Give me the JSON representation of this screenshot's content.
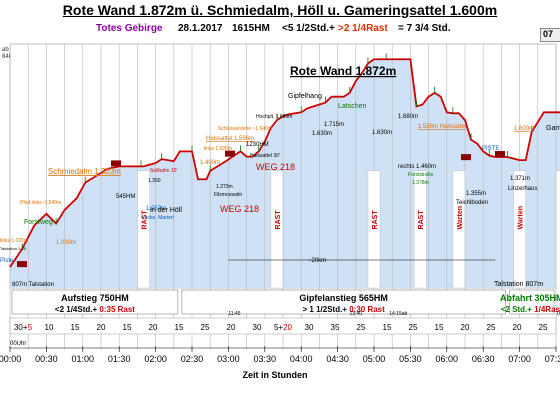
{
  "header": {
    "title": "Rote Wand 1.872m ü. Schmiedalm, Höll u. Gameringsattel 1.600m",
    "region": "Totes Gebirge",
    "date": "28.1.2017",
    "hm": "1615HM",
    "duration_prefix": "<5 1/2Std.+",
    "duration_rest": ">2 1/4Rast",
    "duration_total": "= 7 3/4 Std.",
    "corner": "07"
  },
  "left_note": [
    "ab Haid:",
    "84km; 1 Std."
  ],
  "colors": {
    "profile": "#cc0000",
    "fill": "#cfe1f5",
    "grid": "#b8b8b8",
    "rast": "#cc0000",
    "green": "#007a00",
    "orange": "#e07000",
    "blue": "#0060c0",
    "purple": "#8a00a0"
  },
  "chart_data": {
    "type": "area",
    "xlabel": "Zeit in Stunden",
    "x_ticks": [
      "00:00",
      "00:30",
      "01:00",
      "01:30",
      "02:00",
      "02:30",
      "03:00",
      "03:30",
      "04:00",
      "04:30",
      "05:00",
      "05:30",
      "06:00",
      "06:30",
      "07:00",
      "07:30"
    ],
    "x_unit": "minutes",
    "x": [
      0,
      10,
      20,
      30,
      38,
      45,
      55,
      62,
      70,
      80,
      90,
      95,
      97,
      108,
      110,
      120,
      125,
      135,
      140,
      150,
      155,
      162,
      165,
      178,
      185,
      190,
      195,
      200,
      205,
      210,
      215,
      220,
      225,
      230,
      240,
      245,
      255,
      260,
      265,
      275,
      280,
      285,
      290,
      295,
      300,
      305,
      310,
      315,
      330,
      335,
      340,
      345,
      350,
      355,
      360,
      365,
      370,
      375,
      380,
      385,
      390,
      395,
      400,
      403,
      410,
      420,
      425,
      430,
      440,
      450,
      460,
      465,
      470
    ],
    "y": [
      807,
      900,
      1020,
      1080,
      1030,
      1100,
      1160,
      1240,
      1270,
      1310,
      1323,
      1323,
      1323,
      1323,
      1323,
      1340,
      1360,
      1350,
      1400,
      1400,
      1257,
      1257,
      1300,
      1350,
      1380,
      1400,
      1373,
      1373,
      1400,
      1450,
      1520,
      1560,
      1580,
      1590,
      1600,
      1620,
      1640,
      1650,
      1680,
      1680,
      1700,
      1760,
      1800,
      1850,
      1872,
      1872,
      1872,
      1872,
      1872,
      1630,
      1640,
      1680,
      1700,
      1680,
      1600,
      1595,
      1595,
      1560,
      1460,
      1440,
      1400,
      1378,
      1371,
      1371,
      1371,
      1355,
      1355,
      1500,
      1600,
      1600,
      1600,
      1600,
      1150
    ],
    "ylim": [
      700,
      1950
    ],
    "markers": [
      "Talstation",
      "Schmiedalm",
      "Rote Wand Gipfel",
      "Linzerhaus",
      "Talstation 807m"
    ]
  },
  "profile_labels": [
    {
      "text": "Rote Wand 1.872m",
      "color": "#000000",
      "bold": true,
      "underline": true,
      "size": 12
    },
    {
      "text": "Gipfelhang",
      "color": "#000000",
      "size": 7
    },
    {
      "text": "Latschen",
      "color": "#007a00",
      "size": 7
    },
    {
      "text": "1.715m",
      "color": "#000000",
      "size": 6
    },
    {
      "text": "1.630m",
      "color": "#000000",
      "size": 6
    },
    {
      "text": "Hochplt. 1.680m",
      "color": "#000000",
      "size": 5
    },
    {
      "text": "1.630m",
      "color": "#000000",
      "size": 6
    },
    {
      "text": "1.680m",
      "color": "#000000",
      "size": 6
    },
    {
      "text": "1.595m Halssattel",
      "color": "#e07000",
      "size": 6,
      "underline": true
    },
    {
      "text": "1.600m",
      "color": "#e07000",
      "size": 6,
      "underline": true
    },
    {
      "text": "Gam",
      "color": "#000000",
      "size": 7
    },
    {
      "text": "Schlüsselstelle ~1.640m",
      "color": "#e07000",
      "size": 5
    },
    {
      "text": "Halssattel 1.596m",
      "color": "#e07000",
      "size": 6,
      "underline": true
    },
    {
      "text": "1230HM",
      "color": "#000000",
      "size": 6
    },
    {
      "text": "Halssattel 30'",
      "color": "#000000",
      "size": 5
    },
    {
      "text": "links 1.520m",
      "color": "#e07000",
      "size": 5
    },
    {
      "text": "1.400m",
      "color": "#e07000",
      "size": 6
    },
    {
      "text": "WEG 218",
      "color": "#cc0000",
      "size": 9
    },
    {
      "text": "1.373m",
      "color": "#000000",
      "size": 5
    },
    {
      "text": "Filzmoosalm",
      "color": "#000000",
      "size": 5
    },
    {
      "text": "Seilbahn 15'",
      "color": "#cc0000",
      "size": 5
    },
    {
      "text": "1.350",
      "color": "#000000",
      "size": 5
    },
    {
      "text": "Schmiedalm 1.323m",
      "color": "#e07000",
      "size": 8,
      "underline": true
    },
    {
      "text": "545HM",
      "color": "#000000",
      "size": 6
    },
    {
      "text": "1.257m",
      "color": "#0060c0",
      "size": 6
    },
    {
      "text": "Lacke, Marterl",
      "color": "#0060c0",
      "size": 5
    },
    {
      "text": "In der Höll",
      "color": "#000000",
      "size": 7
    },
    {
      "text": "WEG 218",
      "color": "#cc0000",
      "size": 9
    },
    {
      "text": "Pfad links~1.240m",
      "color": "#e07000",
      "size": 5
    },
    {
      "text": "Forstweg",
      "color": "#007a00",
      "size": 7
    },
    {
      "text": "links 1.020m",
      "color": "#e07000",
      "size": 5
    },
    {
      "text": "Talstation 1:15",
      "color": "#000000",
      "size": 4
    },
    {
      "text": "1.030m",
      "color": "#e07000",
      "size": 6
    },
    {
      "text": "Piste",
      "color": "#0060c0",
      "size": 6
    },
    {
      "text": "807m Talstation",
      "color": "#000000",
      "size": 6
    },
    {
      "text": "rechts 1.460m",
      "color": "#000000",
      "size": 6
    },
    {
      "text": "Forststraße",
      "color": "#007a00",
      "size": 5
    },
    {
      "text": "1.378m",
      "color": "#007a00",
      "size": 5
    },
    {
      "text": "1.355m",
      "color": "#000000",
      "size": 6
    },
    {
      "text": "Teichlboden",
      "color": "#000000",
      "size": 6
    },
    {
      "text": "PISTE",
      "color": "#0060c0",
      "size": 6
    },
    {
      "text": "1.371m",
      "color": "#000000",
      "size": 6
    },
    {
      "text": "Linzerhaus",
      "color": "#000000",
      "size": 6
    },
    {
      "text": "~20km",
      "color": "#000000",
      "size": 6
    },
    {
      "text": "Talstation 807m",
      "color": "#000000",
      "size": 7
    }
  ],
  "vertical_bars": [
    {
      "text": "RAST",
      "color": "#cc0000"
    },
    {
      "text": "RAST",
      "color": "#cc0000"
    },
    {
      "text": "RAST",
      "color": "#cc0000"
    },
    {
      "text": "RAST",
      "color": "#cc0000"
    },
    {
      "text": "Warten",
      "color": "#cc0000"
    },
    {
      "text": "Warten",
      "color": "#cc0000"
    },
    {
      "text": "Warten",
      "color": "#cc0000"
    }
  ],
  "sections": [
    {
      "title": "Aufstieg 750HM",
      "sub_black": "<2 1/4Std.+",
      "sub_red": "0:35 Rast",
      "color": "#000000"
    },
    {
      "title": "Gipfelanstieg 565HM",
      "sub_black": "> 1 1/2Std.+",
      "sub_red": "0:30 Rast",
      "color": "#000000"
    },
    {
      "title": "Abfahrt 305HM",
      "sub_black": "<2 Std.+",
      "sub_red": "1/4Rast",
      "color": "#007a00"
    }
  ],
  "segment_minutes": [
    {
      "text": "30+",
      "extra": "5"
    },
    {
      "text": "10"
    },
    {
      "text": "15"
    },
    {
      "text": "20"
    },
    {
      "text": "15"
    },
    {
      "text": "20"
    },
    {
      "text": "15"
    },
    {
      "text": "25"
    },
    {
      "text": "20"
    },
    {
      "text": "30"
    },
    {
      "text": "5+",
      "extra": "20"
    },
    {
      "text": "30"
    },
    {
      "text": "35"
    },
    {
      "text": "25"
    },
    {
      "text": "15"
    },
    {
      "text": "25"
    },
    {
      "text": "15"
    },
    {
      "text": "20"
    },
    {
      "text": "25"
    },
    {
      "text": "20"
    },
    {
      "text": "25"
    }
  ],
  "time_marks": [
    {
      "text": "11:45"
    },
    {
      "text": "13:40"
    },
    {
      "text": "14:15ab"
    },
    {
      "text": "16:00"
    }
  ],
  "bottom_left_time": "00Uhr"
}
